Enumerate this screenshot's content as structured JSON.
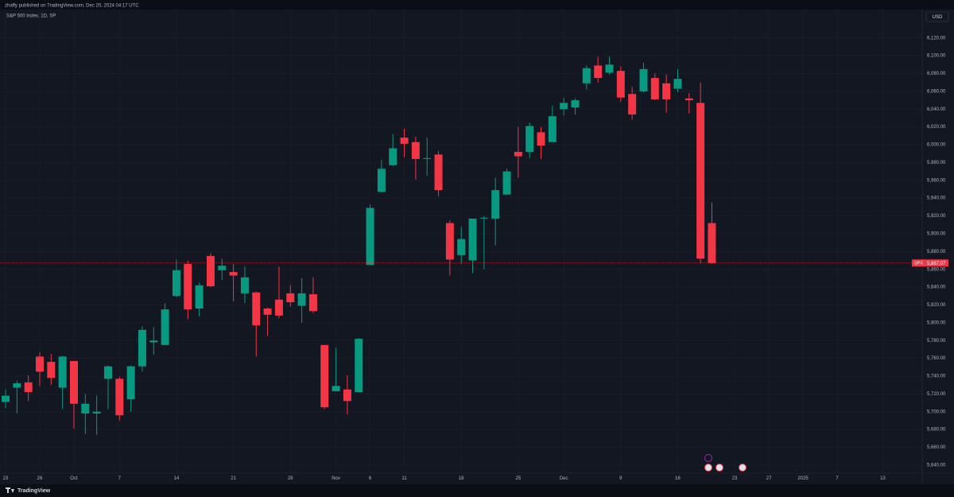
{
  "header": {
    "publisher": "zhaffy published on TradingView.com, Dec 20, 2024 04:17 UTC",
    "footer": "TradingView"
  },
  "chart_data": {
    "type": "candlestick",
    "title": "S&P 500 Index, 1D, SP",
    "currency": "USD",
    "symbol": "SPX",
    "up_color": "#089981",
    "down_color": "#f23645",
    "grid": true,
    "categories": [
      "23",
      null,
      null,
      "26",
      null,
      null,
      "Oct",
      null,
      null,
      null,
      "7",
      null,
      null,
      null,
      null,
      "14",
      null,
      null,
      null,
      null,
      "21",
      null,
      null,
      null,
      null,
      "28",
      null,
      null,
      null,
      "Nov",
      null,
      null,
      "6",
      null,
      null,
      "11",
      null,
      null,
      null,
      null,
      "18",
      null,
      null,
      null,
      null,
      "25",
      null,
      null,
      null,
      "Dec",
      null,
      null,
      null,
      null,
      "9",
      null,
      null,
      null,
      null,
      "16",
      null,
      null,
      null,
      null,
      "23",
      null,
      null,
      "27",
      null,
      null,
      "2025",
      null,
      null,
      "7",
      null,
      null,
      null,
      "13"
    ],
    "open": [
      5711,
      5727,
      5733,
      5762,
      5756,
      5727,
      5757,
      5698,
      5698,
      5737,
      5737,
      5714,
      5751,
      5778,
      5775,
      5830,
      5866,
      5816,
      5875,
      5859,
      5857,
      5833,
      5834,
      5816,
      5826,
      5833,
      5819,
      5832,
      5775,
      5723,
      5725,
      5722,
      5865,
      5947,
      5977,
      6008,
      6003,
      5985,
      5989,
      5912,
      5876,
      5870,
      5917,
      5917,
      5944,
      5992,
      5992,
      6014,
      6003,
      6040,
      6042,
      6069,
      6089,
      6081,
      6083,
      6057,
      6060,
      6075,
      6069,
      6063,
      6052,
      6047,
      5912,
      null,
      null,
      null,
      null,
      null,
      null,
      null,
      null,
      null,
      null,
      null,
      null,
      null,
      null,
      null
    ],
    "high": [
      5725,
      5735,
      5741,
      5767,
      5765,
      5763,
      5757,
      5720,
      5718,
      5752,
      5739,
      5752,
      5796,
      5795,
      5822,
      5871,
      5870,
      5845,
      5878,
      5872,
      5866,
      5863,
      5835,
      5817,
      5863,
      5842,
      5850,
      5851,
      5775,
      5772,
      5741,
      5783,
      5933,
      5983,
      6012,
      6018,
      6009,
      6008,
      5993,
      5915,
      5908,
      5917,
      5920,
      5963,
      5973,
      6020,
      6025,
      6020,
      6044,
      6053,
      6052,
      6089,
      6099,
      6099,
      6088,
      6065,
      6092,
      6080,
      6079,
      6085,
      6058,
      6070,
      5935,
      null,
      null,
      null,
      null,
      null,
      null,
      null,
      null,
      null,
      null,
      null,
      null,
      null,
      null,
      null
    ],
    "low": [
      5704,
      5698,
      5712,
      5729,
      5730,
      5703,
      5681,
      5675,
      5674,
      5703,
      5690,
      5700,
      5745,
      5764,
      5775,
      5829,
      5804,
      5807,
      5840,
      5848,
      5824,
      5822,
      5762,
      5785,
      5805,
      5818,
      5800,
      5811,
      5703,
      5723,
      5697,
      5722,
      5865,
      5947,
      5976,
      5986,
      5961,
      5965,
      5942,
      5853,
      5866,
      5856,
      5860,
      5887,
      5944,
      5963,
      5985,
      5984,
      6003,
      6033,
      6034,
      6062,
      6070,
      6079,
      6048,
      6028,
      6059,
      6050,
      6036,
      6059,
      6035,
      5867,
      5866,
      null,
      null,
      null,
      null,
      null,
      null,
      null,
      null,
      null,
      null,
      null,
      null,
      null,
      null,
      null
    ],
    "close": [
      5718,
      5732,
      5722,
      5745,
      5738,
      5762,
      5709,
      5709,
      5700,
      5751,
      5696,
      5751,
      5792,
      5780,
      5815,
      5859,
      5815,
      5842,
      5841,
      5864,
      5853,
      5851,
      5797,
      5809,
      5808,
      5823,
      5833,
      5813,
      5705,
      5729,
      5712,
      5782,
      5929,
      5973,
      5996,
      6001,
      5984,
      5985,
      5949,
      5871,
      5894,
      5917,
      5918,
      5949,
      5970,
      5987,
      6021,
      5999,
      6032,
      6047,
      6050,
      6086,
      6075,
      6090,
      6053,
      6034,
      6085,
      6051,
      6051,
      6074,
      6050,
      5872,
      5867.07,
      null,
      null,
      null,
      null,
      null,
      null,
      null,
      null,
      null,
      null,
      null,
      null,
      null,
      null,
      null
    ],
    "last_price": {
      "value": 5867.07,
      "label": "5,867.07"
    },
    "ylim": [
      5631,
      6151
    ],
    "yticks": [
      {
        "value": 5640,
        "label": "5,640.00"
      },
      {
        "value": 5660,
        "label": "5,660.00"
      },
      {
        "value": 5680,
        "label": "5,680.00"
      },
      {
        "value": 5700,
        "label": "5,700.00"
      },
      {
        "value": 5720,
        "label": "5,720.00"
      },
      {
        "value": 5740,
        "label": "5,740.00"
      },
      {
        "value": 5760,
        "label": "5,760.00"
      },
      {
        "value": 5780,
        "label": "5,780.00"
      },
      {
        "value": 5800,
        "label": "5,800.00"
      },
      {
        "value": 5820,
        "label": "5,820.00"
      },
      {
        "value": 5840,
        "label": "5,840.00"
      },
      {
        "value": 5860,
        "label": "5,860.00"
      },
      {
        "value": 5880,
        "label": "5,880.00"
      },
      {
        "value": 5900,
        "label": "5,900.00"
      },
      {
        "value": 5920,
        "label": "5,920.00"
      },
      {
        "value": 5940,
        "label": "5,940.00"
      },
      {
        "value": 5960,
        "label": "5,960.00"
      },
      {
        "value": 5980,
        "label": "5,980.00"
      },
      {
        "value": 6000,
        "label": "6,000.00"
      },
      {
        "value": 6020,
        "label": "6,020.00"
      },
      {
        "value": 6040,
        "label": "6,040.00"
      },
      {
        "value": 6060,
        "label": "6,060.00"
      },
      {
        "value": 6080,
        "label": "6,080.00"
      },
      {
        "value": 6100,
        "label": "6,100.00"
      },
      {
        "value": 6120,
        "label": "6,120.00"
      }
    ]
  }
}
